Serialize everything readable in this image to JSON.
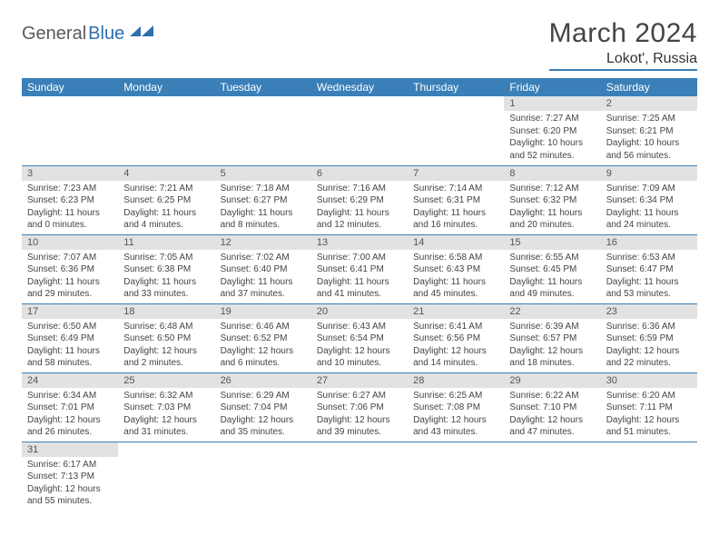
{
  "logo": {
    "general": "General",
    "blue": "Blue"
  },
  "title": "March 2024",
  "location": "Lokot', Russia",
  "colors": {
    "header_bg": "#3a7fb8",
    "header_fg": "#ffffff",
    "daynum_bg": "#e2e2e2",
    "text": "#444444",
    "rule": "#3a7fb8"
  },
  "day_headers": [
    "Sunday",
    "Monday",
    "Tuesday",
    "Wednesday",
    "Thursday",
    "Friday",
    "Saturday"
  ],
  "weeks": [
    [
      {
        "n": "",
        "lines": [
          "",
          "",
          "",
          ""
        ]
      },
      {
        "n": "",
        "lines": [
          "",
          "",
          "",
          ""
        ]
      },
      {
        "n": "",
        "lines": [
          "",
          "",
          "",
          ""
        ]
      },
      {
        "n": "",
        "lines": [
          "",
          "",
          "",
          ""
        ]
      },
      {
        "n": "",
        "lines": [
          "",
          "",
          "",
          ""
        ]
      },
      {
        "n": "1",
        "lines": [
          "Sunrise: 7:27 AM",
          "Sunset: 6:20 PM",
          "Daylight: 10 hours",
          "and 52 minutes."
        ]
      },
      {
        "n": "2",
        "lines": [
          "Sunrise: 7:25 AM",
          "Sunset: 6:21 PM",
          "Daylight: 10 hours",
          "and 56 minutes."
        ]
      }
    ],
    [
      {
        "n": "3",
        "lines": [
          "Sunrise: 7:23 AM",
          "Sunset: 6:23 PM",
          "Daylight: 11 hours",
          "and 0 minutes."
        ]
      },
      {
        "n": "4",
        "lines": [
          "Sunrise: 7:21 AM",
          "Sunset: 6:25 PM",
          "Daylight: 11 hours",
          "and 4 minutes."
        ]
      },
      {
        "n": "5",
        "lines": [
          "Sunrise: 7:18 AM",
          "Sunset: 6:27 PM",
          "Daylight: 11 hours",
          "and 8 minutes."
        ]
      },
      {
        "n": "6",
        "lines": [
          "Sunrise: 7:16 AM",
          "Sunset: 6:29 PM",
          "Daylight: 11 hours",
          "and 12 minutes."
        ]
      },
      {
        "n": "7",
        "lines": [
          "Sunrise: 7:14 AM",
          "Sunset: 6:31 PM",
          "Daylight: 11 hours",
          "and 16 minutes."
        ]
      },
      {
        "n": "8",
        "lines": [
          "Sunrise: 7:12 AM",
          "Sunset: 6:32 PM",
          "Daylight: 11 hours",
          "and 20 minutes."
        ]
      },
      {
        "n": "9",
        "lines": [
          "Sunrise: 7:09 AM",
          "Sunset: 6:34 PM",
          "Daylight: 11 hours",
          "and 24 minutes."
        ]
      }
    ],
    [
      {
        "n": "10",
        "lines": [
          "Sunrise: 7:07 AM",
          "Sunset: 6:36 PM",
          "Daylight: 11 hours",
          "and 29 minutes."
        ]
      },
      {
        "n": "11",
        "lines": [
          "Sunrise: 7:05 AM",
          "Sunset: 6:38 PM",
          "Daylight: 11 hours",
          "and 33 minutes."
        ]
      },
      {
        "n": "12",
        "lines": [
          "Sunrise: 7:02 AM",
          "Sunset: 6:40 PM",
          "Daylight: 11 hours",
          "and 37 minutes."
        ]
      },
      {
        "n": "13",
        "lines": [
          "Sunrise: 7:00 AM",
          "Sunset: 6:41 PM",
          "Daylight: 11 hours",
          "and 41 minutes."
        ]
      },
      {
        "n": "14",
        "lines": [
          "Sunrise: 6:58 AM",
          "Sunset: 6:43 PM",
          "Daylight: 11 hours",
          "and 45 minutes."
        ]
      },
      {
        "n": "15",
        "lines": [
          "Sunrise: 6:55 AM",
          "Sunset: 6:45 PM",
          "Daylight: 11 hours",
          "and 49 minutes."
        ]
      },
      {
        "n": "16",
        "lines": [
          "Sunrise: 6:53 AM",
          "Sunset: 6:47 PM",
          "Daylight: 11 hours",
          "and 53 minutes."
        ]
      }
    ],
    [
      {
        "n": "17",
        "lines": [
          "Sunrise: 6:50 AM",
          "Sunset: 6:49 PM",
          "Daylight: 11 hours",
          "and 58 minutes."
        ]
      },
      {
        "n": "18",
        "lines": [
          "Sunrise: 6:48 AM",
          "Sunset: 6:50 PM",
          "Daylight: 12 hours",
          "and 2 minutes."
        ]
      },
      {
        "n": "19",
        "lines": [
          "Sunrise: 6:46 AM",
          "Sunset: 6:52 PM",
          "Daylight: 12 hours",
          "and 6 minutes."
        ]
      },
      {
        "n": "20",
        "lines": [
          "Sunrise: 6:43 AM",
          "Sunset: 6:54 PM",
          "Daylight: 12 hours",
          "and 10 minutes."
        ]
      },
      {
        "n": "21",
        "lines": [
          "Sunrise: 6:41 AM",
          "Sunset: 6:56 PM",
          "Daylight: 12 hours",
          "and 14 minutes."
        ]
      },
      {
        "n": "22",
        "lines": [
          "Sunrise: 6:39 AM",
          "Sunset: 6:57 PM",
          "Daylight: 12 hours",
          "and 18 minutes."
        ]
      },
      {
        "n": "23",
        "lines": [
          "Sunrise: 6:36 AM",
          "Sunset: 6:59 PM",
          "Daylight: 12 hours",
          "and 22 minutes."
        ]
      }
    ],
    [
      {
        "n": "24",
        "lines": [
          "Sunrise: 6:34 AM",
          "Sunset: 7:01 PM",
          "Daylight: 12 hours",
          "and 26 minutes."
        ]
      },
      {
        "n": "25",
        "lines": [
          "Sunrise: 6:32 AM",
          "Sunset: 7:03 PM",
          "Daylight: 12 hours",
          "and 31 minutes."
        ]
      },
      {
        "n": "26",
        "lines": [
          "Sunrise: 6:29 AM",
          "Sunset: 7:04 PM",
          "Daylight: 12 hours",
          "and 35 minutes."
        ]
      },
      {
        "n": "27",
        "lines": [
          "Sunrise: 6:27 AM",
          "Sunset: 7:06 PM",
          "Daylight: 12 hours",
          "and 39 minutes."
        ]
      },
      {
        "n": "28",
        "lines": [
          "Sunrise: 6:25 AM",
          "Sunset: 7:08 PM",
          "Daylight: 12 hours",
          "and 43 minutes."
        ]
      },
      {
        "n": "29",
        "lines": [
          "Sunrise: 6:22 AM",
          "Sunset: 7:10 PM",
          "Daylight: 12 hours",
          "and 47 minutes."
        ]
      },
      {
        "n": "30",
        "lines": [
          "Sunrise: 6:20 AM",
          "Sunset: 7:11 PM",
          "Daylight: 12 hours",
          "and 51 minutes."
        ]
      }
    ],
    [
      {
        "n": "31",
        "lines": [
          "Sunrise: 6:17 AM",
          "Sunset: 7:13 PM",
          "Daylight: 12 hours",
          "and 55 minutes."
        ]
      },
      {
        "n": "",
        "lines": [
          "",
          "",
          "",
          ""
        ]
      },
      {
        "n": "",
        "lines": [
          "",
          "",
          "",
          ""
        ]
      },
      {
        "n": "",
        "lines": [
          "",
          "",
          "",
          ""
        ]
      },
      {
        "n": "",
        "lines": [
          "",
          "",
          "",
          ""
        ]
      },
      {
        "n": "",
        "lines": [
          "",
          "",
          "",
          ""
        ]
      },
      {
        "n": "",
        "lines": [
          "",
          "",
          "",
          ""
        ]
      }
    ]
  ]
}
